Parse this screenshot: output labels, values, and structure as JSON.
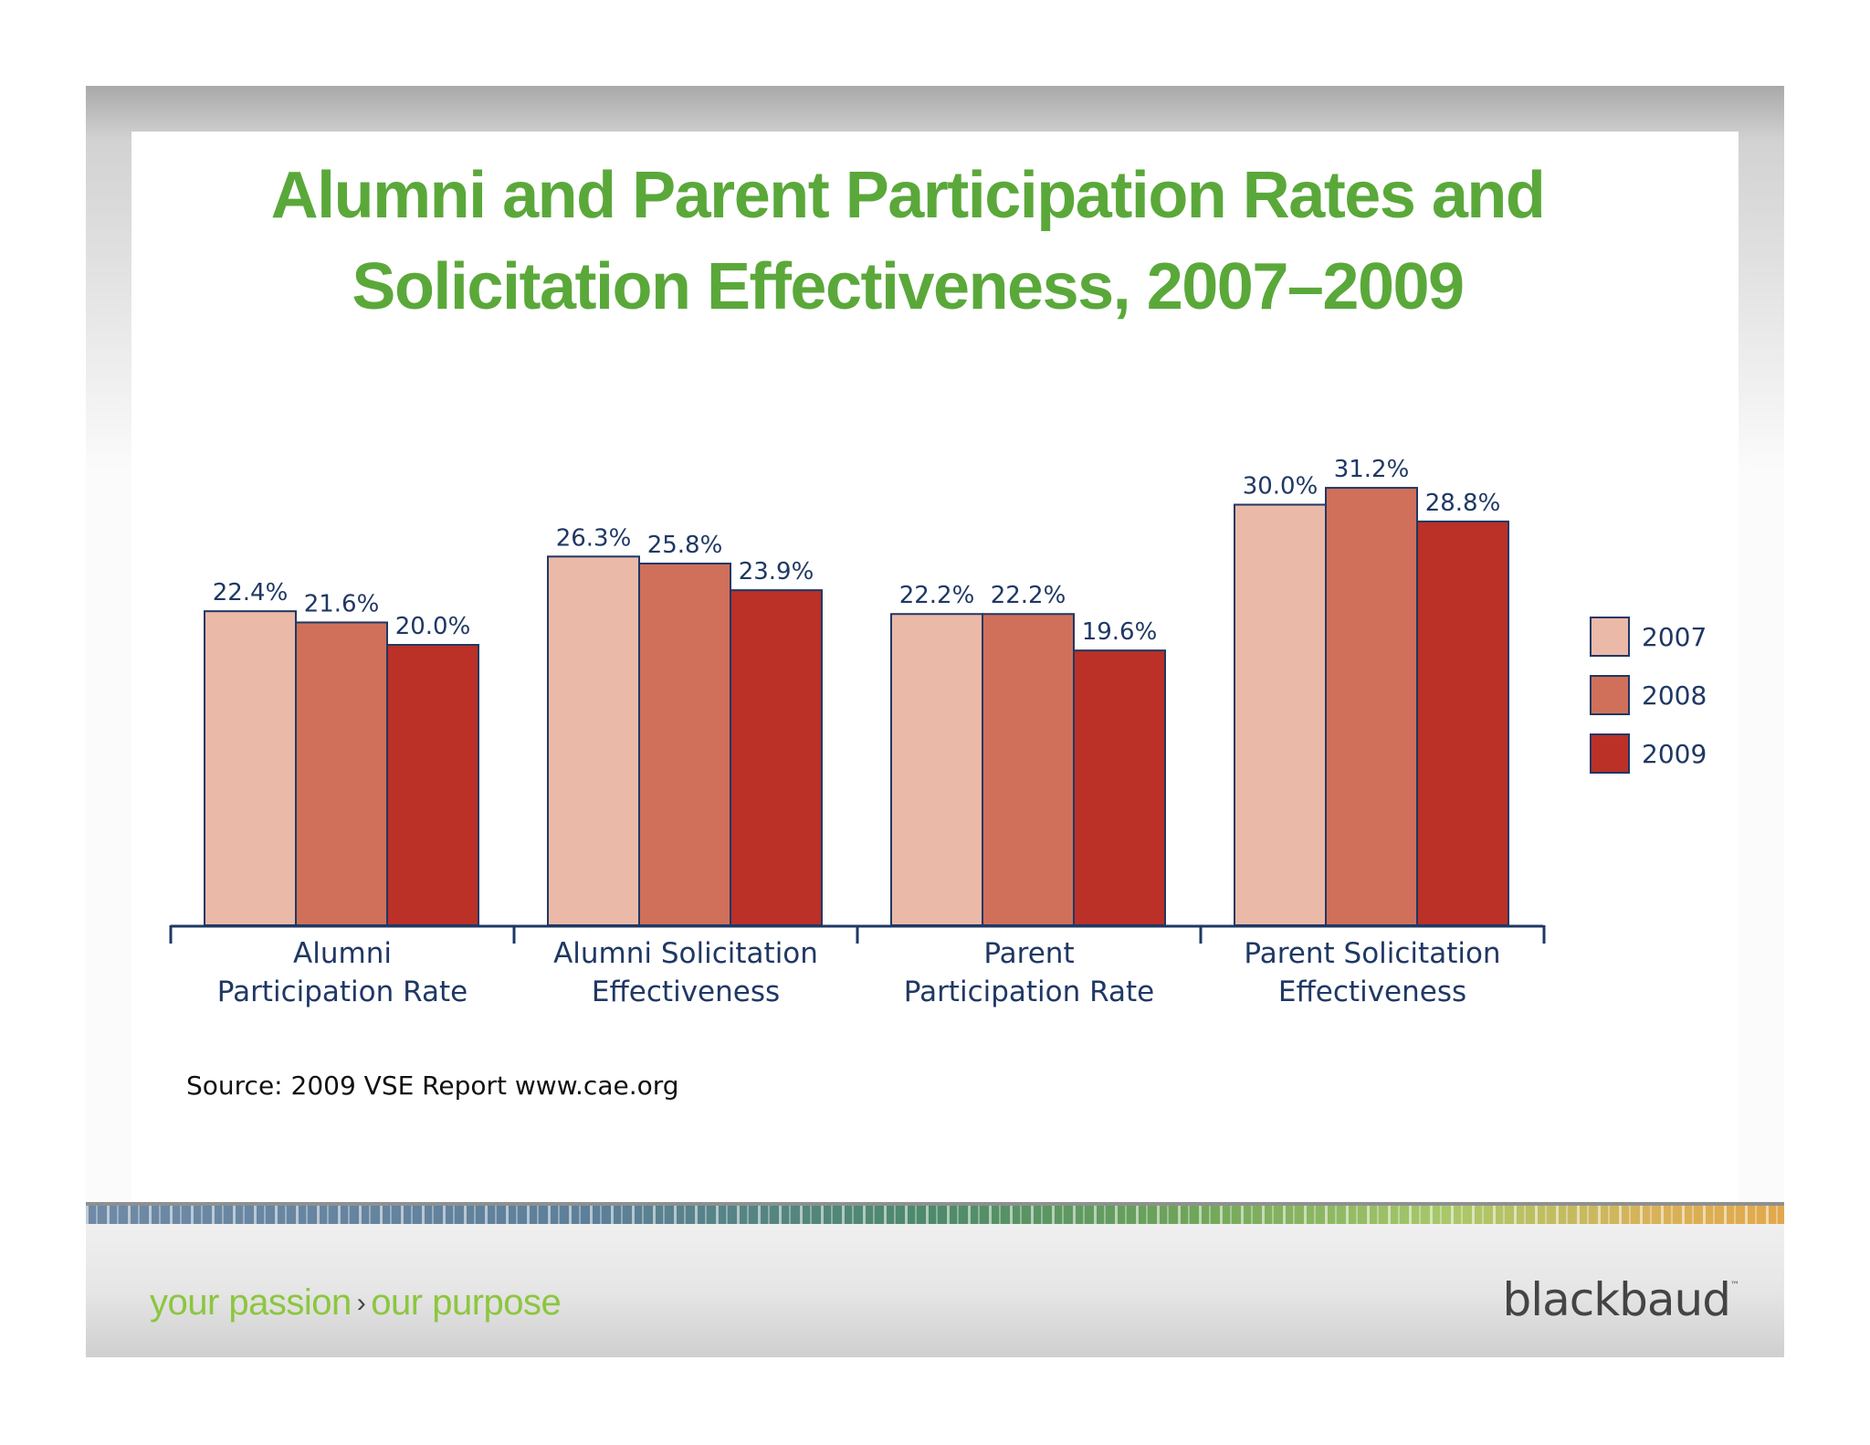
{
  "title_lines": [
    "Alumni and Parent Participation Rates and",
    "Solicitation Effectiveness, 2007–2009"
  ],
  "colors": {
    "title": "#5aa83a",
    "series": [
      "#ebb9a8",
      "#d0705a",
      "#bb3027"
    ],
    "outline": "#1f3864",
    "label_text": "#1f3864"
  },
  "chart_data": {
    "type": "bar",
    "title": "Alumni and Parent Participation Rates and Solicitation Effectiveness, 2007–2009",
    "categories": [
      [
        "Alumni",
        "Participation Rate"
      ],
      [
        "Alumni Solicitation",
        "Effectiveness"
      ],
      [
        "Parent",
        "Participation Rate"
      ],
      [
        "Parent Solicitation",
        "Effectiveness"
      ]
    ],
    "series": [
      {
        "name": "2007",
        "values": [
          22.4,
          26.3,
          22.2,
          30.0
        ],
        "labels": [
          "22.4%",
          "26.3%",
          "22.2%",
          "30.0%"
        ]
      },
      {
        "name": "2008",
        "values": [
          21.6,
          25.8,
          22.2,
          31.2
        ],
        "labels": [
          "21.6%",
          "25.8%",
          "22.2%",
          "31.2%"
        ]
      },
      {
        "name": "2009",
        "values": [
          20.0,
          23.9,
          19.6,
          28.8
        ],
        "labels": [
          "20.0%",
          "23.9%",
          "19.6%",
          "28.8%"
        ]
      }
    ],
    "legend": [
      "2007",
      "2008",
      "2009"
    ],
    "legend_position": "right",
    "ylim": [
      0,
      35
    ],
    "grid": false,
    "xlabel": "",
    "ylabel": ""
  },
  "source": "Source: 2009 VSE Report www.cae.org",
  "footer": {
    "tagline_left": "your passion",
    "tagline_arrow": "›",
    "tagline_right": "our purpose",
    "logo": "blackbaud",
    "logo_tm": "™"
  }
}
